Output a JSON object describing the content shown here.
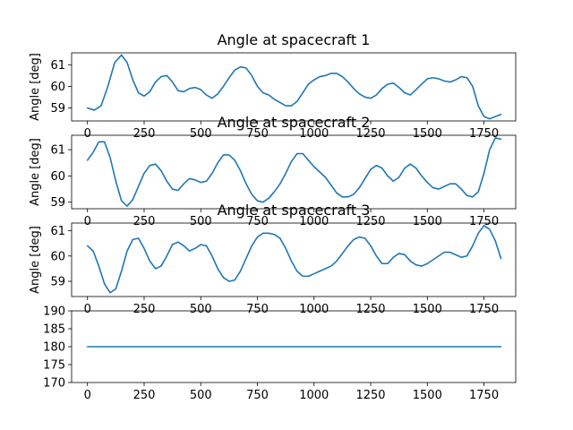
{
  "chart_data": [
    {
      "type": "line",
      "title": "Angle at spacecraft 1",
      "ylabel": "Angle [deg]",
      "xlim": [
        -70,
        1890
      ],
      "ylim": [
        58.4,
        61.55
      ],
      "xticks": [
        0,
        250,
        500,
        750,
        1000,
        1250,
        1500,
        1750
      ],
      "yticks": [
        59,
        60,
        61
      ],
      "color": "#1f77b4",
      "x": [
        0,
        30,
        60,
        90,
        120,
        150,
        175,
        200,
        225,
        250,
        275,
        300,
        325,
        350,
        375,
        400,
        425,
        450,
        475,
        500,
        525,
        550,
        575,
        600,
        625,
        650,
        675,
        700,
        725,
        750,
        775,
        800,
        825,
        850,
        875,
        900,
        925,
        950,
        975,
        1000,
        1025,
        1050,
        1075,
        1100,
        1125,
        1150,
        1175,
        1200,
        1225,
        1250,
        1275,
        1300,
        1325,
        1350,
        1375,
        1400,
        1425,
        1450,
        1475,
        1500,
        1525,
        1550,
        1575,
        1600,
        1625,
        1650,
        1675,
        1700,
        1725,
        1750,
        1775,
        1800,
        1825
      ],
      "y": [
        59.0,
        58.9,
        59.1,
        60.0,
        61.1,
        61.45,
        61.1,
        60.3,
        59.7,
        59.55,
        59.75,
        60.2,
        60.45,
        60.5,
        60.2,
        59.8,
        59.75,
        59.9,
        59.95,
        59.85,
        59.6,
        59.45,
        59.65,
        60.0,
        60.4,
        60.75,
        60.9,
        60.85,
        60.5,
        60.0,
        59.7,
        59.6,
        59.4,
        59.25,
        59.1,
        59.1,
        59.3,
        59.7,
        60.1,
        60.3,
        60.45,
        60.5,
        60.6,
        60.6,
        60.45,
        60.2,
        59.9,
        59.65,
        59.5,
        59.45,
        59.6,
        59.9,
        60.1,
        60.15,
        59.95,
        59.7,
        59.6,
        59.85,
        60.1,
        60.35,
        60.4,
        60.35,
        60.25,
        60.2,
        60.3,
        60.45,
        60.4,
        60.0,
        59.1,
        58.6,
        58.5,
        58.6,
        58.7
      ]
    },
    {
      "type": "line",
      "title": "Angle at spacecraft 2",
      "ylabel": "Angle [deg]",
      "xlim": [
        -70,
        1890
      ],
      "ylim": [
        58.75,
        61.55
      ],
      "xticks": [
        0,
        250,
        500,
        750,
        1000,
        1250,
        1500,
        1750
      ],
      "yticks": [
        59,
        60,
        61
      ],
      "color": "#1f77b4",
      "x": [
        0,
        25,
        50,
        75,
        100,
        125,
        150,
        175,
        200,
        225,
        250,
        275,
        300,
        325,
        350,
        375,
        400,
        425,
        450,
        475,
        500,
        525,
        550,
        575,
        600,
        625,
        650,
        675,
        700,
        725,
        750,
        775,
        800,
        825,
        850,
        875,
        900,
        925,
        950,
        975,
        1000,
        1025,
        1050,
        1075,
        1100,
        1125,
        1150,
        1175,
        1200,
        1225,
        1250,
        1275,
        1300,
        1325,
        1350,
        1375,
        1400,
        1425,
        1450,
        1475,
        1500,
        1525,
        1550,
        1575,
        1600,
        1625,
        1650,
        1675,
        1700,
        1725,
        1750,
        1775,
        1800,
        1825
      ],
      "y": [
        60.6,
        60.9,
        61.3,
        61.3,
        60.7,
        59.8,
        59.05,
        58.85,
        59.1,
        59.6,
        60.1,
        60.4,
        60.45,
        60.2,
        59.8,
        59.5,
        59.45,
        59.7,
        59.9,
        59.85,
        59.75,
        59.8,
        60.1,
        60.5,
        60.8,
        60.8,
        60.6,
        60.2,
        59.7,
        59.3,
        59.05,
        59.0,
        59.15,
        59.4,
        59.7,
        60.1,
        60.55,
        60.85,
        60.85,
        60.6,
        60.35,
        60.15,
        59.95,
        59.65,
        59.35,
        59.2,
        59.2,
        59.3,
        59.55,
        59.9,
        60.25,
        60.4,
        60.3,
        60.0,
        59.8,
        59.95,
        60.3,
        60.45,
        60.3,
        60.0,
        59.75,
        59.55,
        59.5,
        59.6,
        59.7,
        59.7,
        59.5,
        59.25,
        59.2,
        59.4,
        60.1,
        61.0,
        61.45,
        61.4
      ]
    },
    {
      "type": "line",
      "title": "Angle at spacecraft 3",
      "ylabel": "Angle [deg]",
      "xlim": [
        -70,
        1890
      ],
      "ylim": [
        58.4,
        61.3
      ],
      "xticks": [
        0,
        250,
        500,
        750,
        1000,
        1250,
        1500,
        1750
      ],
      "yticks": [
        59,
        60,
        61
      ],
      "color": "#1f77b4",
      "x": [
        0,
        25,
        50,
        75,
        100,
        125,
        150,
        175,
        200,
        225,
        250,
        275,
        300,
        325,
        350,
        375,
        400,
        425,
        450,
        475,
        500,
        525,
        550,
        575,
        600,
        625,
        650,
        675,
        700,
        725,
        750,
        775,
        800,
        825,
        850,
        875,
        900,
        925,
        950,
        975,
        1000,
        1025,
        1050,
        1075,
        1100,
        1125,
        1150,
        1175,
        1200,
        1225,
        1250,
        1275,
        1300,
        1325,
        1350,
        1375,
        1400,
        1425,
        1450,
        1475,
        1500,
        1525,
        1550,
        1575,
        1600,
        1625,
        1650,
        1675,
        1700,
        1725,
        1750,
        1775,
        1800,
        1825
      ],
      "y": [
        60.4,
        60.2,
        59.6,
        58.9,
        58.55,
        58.7,
        59.4,
        60.2,
        60.65,
        60.7,
        60.3,
        59.8,
        59.5,
        59.6,
        60.0,
        60.45,
        60.55,
        60.4,
        60.2,
        60.3,
        60.45,
        60.4,
        60.0,
        59.5,
        59.15,
        59.0,
        59.05,
        59.4,
        59.9,
        60.4,
        60.75,
        60.9,
        60.9,
        60.85,
        60.7,
        60.3,
        59.8,
        59.4,
        59.2,
        59.2,
        59.3,
        59.4,
        59.5,
        59.6,
        59.8,
        60.1,
        60.4,
        60.65,
        60.75,
        60.7,
        60.4,
        60.0,
        59.7,
        59.7,
        59.95,
        60.1,
        60.05,
        59.8,
        59.65,
        59.6,
        59.7,
        59.85,
        60.0,
        60.15,
        60.15,
        60.05,
        59.95,
        60.0,
        60.4,
        60.9,
        61.2,
        61.05,
        60.6,
        59.9
      ]
    },
    {
      "type": "line",
      "title": "",
      "ylabel": "",
      "xlim": [
        -70,
        1890
      ],
      "ylim": [
        170,
        190
      ],
      "xticks": [
        0,
        250,
        500,
        750,
        1000,
        1250,
        1500,
        1750
      ],
      "yticks": [
        170,
        175,
        180,
        185,
        190
      ],
      "color": "#1f77b4",
      "x": [
        0,
        1825
      ],
      "y": [
        180,
        180
      ]
    }
  ]
}
